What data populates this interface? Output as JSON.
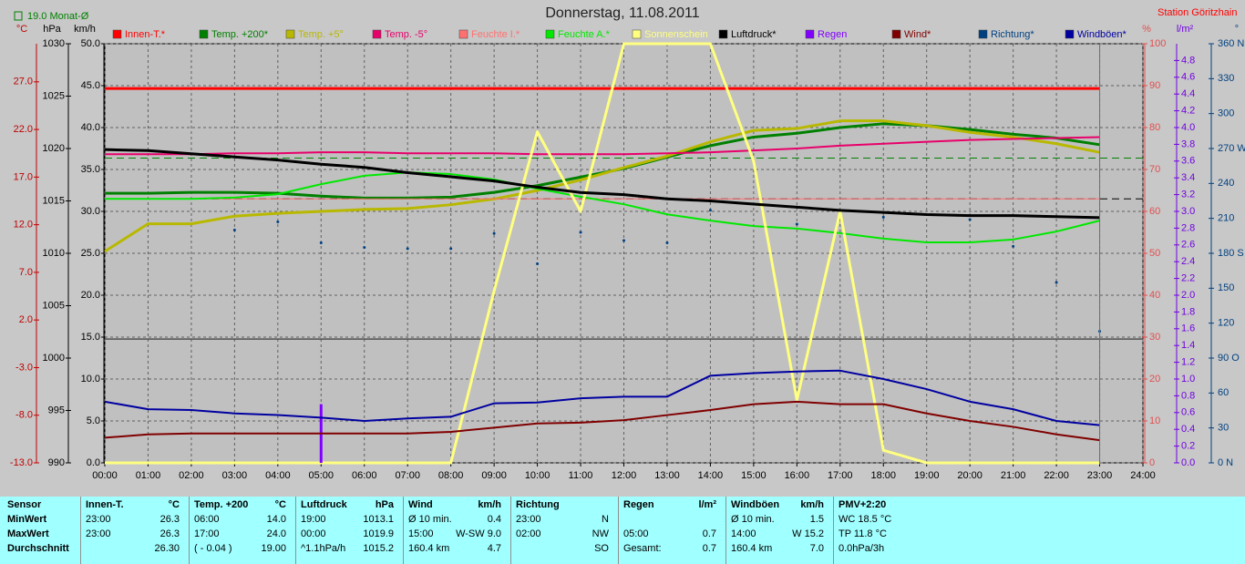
{
  "chart_data": {
    "type": "line",
    "title": "Donnerstag, 11.08.2011",
    "station": "Station Göritzhain",
    "monthly_avg": {
      "value": 19.0,
      "label": "19.0 Monat-Ø",
      "axis": 0,
      "color": "#008000"
    },
    "pressure_ref": {
      "value": 1015.2,
      "axis": 1,
      "color": "#000000"
    },
    "xlim": [
      0,
      24
    ],
    "xticks": [
      {
        "value": 0,
        "label": "00:00"
      },
      {
        "value": 1,
        "label": "01:00"
      },
      {
        "value": 2,
        "label": "02:00"
      },
      {
        "value": 3,
        "label": "03:00"
      },
      {
        "value": 4,
        "label": "04:00"
      },
      {
        "value": 5,
        "label": "05:00"
      },
      {
        "value": 6,
        "label": "06:00"
      },
      {
        "value": 7,
        "label": "07:00"
      },
      {
        "value": 8,
        "label": "08:00"
      },
      {
        "value": 9,
        "label": "09:00"
      },
      {
        "value": 10,
        "label": "10:00"
      },
      {
        "value": 11,
        "label": "11:00"
      },
      {
        "value": 12,
        "label": "12:00"
      },
      {
        "value": 13,
        "label": "13:00"
      },
      {
        "value": 14,
        "label": "14:00"
      },
      {
        "value": 15,
        "label": "15:00"
      },
      {
        "value": 16,
        "label": "16:00"
      },
      {
        "value": 17,
        "label": "17:00"
      },
      {
        "value": 18,
        "label": "18:00"
      },
      {
        "value": 19,
        "label": "19:00"
      },
      {
        "value": 20,
        "label": "20:00"
      },
      {
        "value": 21,
        "label": "21:00"
      },
      {
        "value": 22,
        "label": "22:00"
      },
      {
        "value": 23,
        "label": "23:00"
      },
      {
        "value": 24,
        "label": "24:00"
      }
    ],
    "grid": true,
    "grid_axis": 2,
    "axes": [
      {
        "unit": "°C",
        "color": "#c00000",
        "lim": [
          -13,
          31
        ],
        "ticks": [
          {
            "value": -13,
            "label": "-13.0"
          },
          {
            "value": -8,
            "label": "-8.0"
          },
          {
            "value": -3,
            "label": "-3.0"
          },
          {
            "value": 2,
            "label": "2.0"
          },
          {
            "value": 7,
            "label": "7.0"
          },
          {
            "value": 12,
            "label": "12.0"
          },
          {
            "value": 17,
            "label": "17.0"
          },
          {
            "value": 22,
            "label": "22.0"
          },
          {
            "value": 27,
            "label": "27.0"
          }
        ]
      },
      {
        "unit": "hPa",
        "color": "#000000",
        "lim": [
          990,
          1030
        ],
        "ticks": [
          990,
          995,
          1000,
          1005,
          1010,
          1015,
          1020,
          1025,
          1030
        ]
      },
      {
        "unit": "km/h",
        "color": "#000000",
        "lim": [
          0,
          50
        ],
        "ticks": [
          {
            "value": 0,
            "label": "0.0"
          },
          {
            "value": 5,
            "label": "5.0"
          },
          {
            "value": 10,
            "label": "10.0"
          },
          {
            "value": 15,
            "label": "15.0"
          },
          {
            "value": 20,
            "label": "20.0"
          },
          {
            "value": 25,
            "label": "25.0"
          },
          {
            "value": 30,
            "label": "30.0"
          },
          {
            "value": 35,
            "label": "35.0"
          },
          {
            "value": 40,
            "label": "40.0"
          },
          {
            "value": 45,
            "label": "45.0"
          },
          {
            "value": 50,
            "label": "50.0"
          }
        ]
      },
      {
        "unit": "%",
        "color": "#e05050",
        "lim": [
          0,
          100
        ],
        "ticks": [
          0,
          10,
          20,
          30,
          40,
          50,
          60,
          70,
          80,
          90,
          100
        ]
      },
      {
        "unit": "l/m²",
        "color": "#7000e0",
        "lim": [
          0,
          5
        ],
        "ticks": [
          {
            "value": 0,
            "label": "0.0"
          },
          {
            "value": 0.2,
            "label": "0.2"
          },
          {
            "value": 0.4,
            "label": "0.4"
          },
          {
            "value": 0.6,
            "label": "0.6"
          },
          {
            "value": 0.8,
            "label": "0.8"
          },
          {
            "value": 1.0,
            "label": "1.0"
          },
          {
            "value": 1.2,
            "label": "1.2"
          },
          {
            "value": 1.4,
            "label": "1.4"
          },
          {
            "value": 1.6,
            "label": "1.6"
          },
          {
            "value": 1.8,
            "label": "1.8"
          },
          {
            "value": 2.0,
            "label": "2.0"
          },
          {
            "value": 2.2,
            "label": "2.2"
          },
          {
            "value": 2.4,
            "label": "2.4"
          },
          {
            "value": 2.6,
            "label": "2.6"
          },
          {
            "value": 2.8,
            "label": "2.8"
          },
          {
            "value": 3.0,
            "label": "3.0"
          },
          {
            "value": 3.2,
            "label": "3.2"
          },
          {
            "value": 3.4,
            "label": "3.4"
          },
          {
            "value": 3.6,
            "label": "3.6"
          },
          {
            "value": 3.8,
            "label": "3.8"
          },
          {
            "value": 4.0,
            "label": "4.0"
          },
          {
            "value": 4.2,
            "label": "4.2"
          },
          {
            "value": 4.4,
            "label": "4.4"
          },
          {
            "value": 4.6,
            "label": "4.6"
          },
          {
            "value": 4.8,
            "label": "4.8"
          }
        ]
      },
      {
        "unit": "°",
        "color": "#004080",
        "lim": [
          0,
          360
        ],
        "ticks": [
          {
            "value": 0,
            "label": "0 N"
          },
          30,
          60,
          {
            "value": 90,
            "label": "90 O"
          },
          120,
          150,
          {
            "value": 180,
            "label": "180 S"
          },
          210,
          240,
          {
            "value": 270,
            "label": "270 W"
          },
          300,
          330,
          {
            "value": 360,
            "label": "360 N"
          }
        ]
      }
    ],
    "series": [
      {
        "name": "Innen-T.*",
        "color": "#ff0000",
        "axis": 0,
        "style": "line",
        "line_width": 3,
        "x": [
          0,
          23
        ],
        "values": [
          26.3,
          26.3
        ]
      },
      {
        "name": "Temp. +200*",
        "color": "#008000",
        "axis": 0,
        "style": "line",
        "line_width": 3,
        "x": [
          0,
          1,
          2,
          3,
          4,
          5,
          6,
          7,
          8,
          9,
          10,
          11,
          12,
          13,
          14,
          15,
          16,
          17,
          18,
          19,
          20,
          21,
          22,
          23
        ],
        "values": [
          15.3,
          15.3,
          15.4,
          15.4,
          15.3,
          15.0,
          14.8,
          14.8,
          14.9,
          15.4,
          16.1,
          17.0,
          17.9,
          19.1,
          20.3,
          21.2,
          21.6,
          22.2,
          22.6,
          22.4,
          22.0,
          21.5,
          21.1,
          20.4
        ]
      },
      {
        "name": "Temp. +5°",
        "color": "#b8b800",
        "axis": 0,
        "style": "line",
        "line_width": 3,
        "x": [
          0,
          1,
          2,
          3,
          4,
          5,
          6,
          7,
          8,
          9,
          10,
          11,
          12,
          13,
          14,
          15,
          16,
          17,
          18,
          19,
          20,
          21,
          22,
          23
        ],
        "values": [
          9.2,
          12.1,
          12.1,
          12.9,
          13.2,
          13.4,
          13.6,
          13.7,
          14.1,
          14.7,
          15.6,
          16.7,
          18.0,
          19.2,
          20.7,
          21.9,
          22.1,
          22.9,
          22.9,
          22.4,
          21.7,
          21.2,
          20.5,
          19.6
        ]
      },
      {
        "name": "Temp. -5°",
        "color": "#e8006a",
        "axis": 0,
        "style": "line",
        "line_width": 2,
        "x": [
          0,
          1,
          2,
          3,
          4,
          5,
          6,
          7,
          8,
          9,
          10,
          11,
          12,
          13,
          14,
          15,
          16,
          17,
          18,
          19,
          20,
          21,
          22,
          23
        ],
        "values": [
          19.4,
          19.4,
          19.4,
          19.5,
          19.5,
          19.6,
          19.6,
          19.5,
          19.5,
          19.5,
          19.4,
          19.4,
          19.4,
          19.5,
          19.6,
          19.8,
          20.0,
          20.3,
          20.5,
          20.7,
          20.9,
          21.0,
          21.1,
          21.2
        ]
      },
      {
        "name": "Feuchte I.*",
        "color": "#ff7070",
        "axis": 3,
        "style": "line",
        "line_width": 1,
        "x": [
          0,
          23
        ],
        "values": [
          63,
          63
        ]
      },
      {
        "name": "Feuchte A.*",
        "color": "#00e800",
        "axis": 3,
        "style": "line",
        "line_width": 2,
        "x": [
          0,
          1,
          2,
          3,
          4,
          5,
          6,
          7,
          8,
          9,
          10,
          11,
          12,
          13,
          14,
          15,
          16,
          17,
          18,
          19,
          20,
          21,
          22,
          23
        ],
        "values": [
          63,
          63,
          63,
          63.3,
          64.1,
          66.5,
          68.5,
          69.3,
          68.9,
          67.6,
          65.4,
          63.5,
          61.7,
          59.3,
          57.8,
          56.5,
          55.9,
          54.8,
          53.5,
          52.6,
          52.6,
          53.3,
          55.2,
          57.8
        ]
      },
      {
        "name": "Sonnenschein",
        "color": "#ffff80",
        "axis": 3,
        "style": "line",
        "line_width": 3,
        "x": [
          0,
          1,
          2,
          3,
          4,
          5,
          6,
          7,
          8,
          9,
          10,
          11,
          12,
          13,
          14,
          15,
          16,
          17,
          18,
          19,
          20,
          21,
          22,
          23
        ],
        "values": [
          0,
          0,
          0,
          0,
          0,
          0,
          0,
          0,
          0,
          41,
          79,
          60,
          100,
          100,
          100,
          72,
          15,
          60,
          3,
          0,
          0,
          0,
          0,
          0
        ]
      },
      {
        "name": "Luftdruck*",
        "color": "#000000",
        "axis": 1,
        "style": "line",
        "line_width": 3,
        "x": [
          0,
          1,
          2,
          3,
          4,
          5,
          6,
          7,
          8,
          9,
          10,
          11,
          12,
          13,
          14,
          15,
          16,
          17,
          18,
          19,
          20,
          21,
          22,
          23
        ],
        "values": [
          1019.9,
          1019.8,
          1019.5,
          1019.2,
          1018.9,
          1018.5,
          1018.2,
          1017.7,
          1017.3,
          1016.9,
          1016.3,
          1015.8,
          1015.6,
          1015.2,
          1015.0,
          1014.7,
          1014.4,
          1014.1,
          1013.9,
          1013.7,
          1013.6,
          1013.6,
          1013.5,
          1013.4
        ]
      },
      {
        "name": "Regen",
        "color": "#8000ff",
        "axis": 4,
        "style": "bar",
        "x": [
          5
        ],
        "values": [
          0.7
        ]
      },
      {
        "name": "Wind*",
        "color": "#800000",
        "axis": 2,
        "style": "line",
        "line_width": 2,
        "x": [
          0,
          1,
          2,
          3,
          4,
          5,
          6,
          7,
          8,
          9,
          10,
          11,
          12,
          13,
          14,
          15,
          16,
          17,
          18,
          19,
          20,
          21,
          22,
          23
        ],
        "values": [
          3.0,
          3.4,
          3.5,
          3.5,
          3.5,
          3.5,
          3.5,
          3.5,
          3.7,
          4.2,
          4.7,
          4.8,
          5.1,
          5.7,
          6.3,
          7.0,
          7.3,
          7.0,
          7.0,
          5.9,
          5.0,
          4.3,
          3.4,
          2.7
        ]
      },
      {
        "name": "Richtung*",
        "color": "#004080",
        "axis": 5,
        "style": "dots",
        "x": [
          3,
          4,
          5,
          6,
          7,
          8,
          9,
          10,
          11,
          12,
          13,
          14,
          16,
          18,
          20,
          21,
          22,
          23
        ],
        "values": [
          200,
          207,
          189,
          185,
          184,
          184,
          197,
          171,
          198,
          191,
          189,
          217,
          205,
          211,
          209,
          186,
          155,
          113
        ]
      },
      {
        "name": "Windböen*",
        "color": "#0000a0",
        "axis": 2,
        "style": "line",
        "line_width": 2,
        "x": [
          0,
          1,
          2,
          3,
          4,
          5,
          6,
          7,
          8,
          9,
          10,
          11,
          12,
          13,
          14,
          15,
          16,
          17,
          18,
          19,
          20,
          21,
          22,
          23
        ],
        "values": [
          7.3,
          6.4,
          6.3,
          5.9,
          5.7,
          5.4,
          5.0,
          5.3,
          5.5,
          7.1,
          7.2,
          7.7,
          7.9,
          7.9,
          10.4,
          10.7,
          10.9,
          11.0,
          10.0,
          8.8,
          7.3,
          6.4,
          5.0,
          4.5
        ]
      }
    ]
  },
  "table": {
    "row_labels": [
      "Sensor",
      "MinWert",
      "MaxWert",
      "Durchschnitt"
    ],
    "columns": [
      {
        "header": "Innen-T.",
        "unit": "°C",
        "rows": [
          [
            "23:00",
            "26.3"
          ],
          [
            "23:00",
            "26.3"
          ],
          [
            null,
            "26.30"
          ]
        ]
      },
      {
        "header": "Temp. +200",
        "unit": "°C",
        "rows": [
          [
            "06:00",
            "14.0"
          ],
          [
            "17:00",
            "24.0"
          ],
          [
            "( - 0.04 )",
            "19.00"
          ]
        ]
      },
      {
        "header": "Luftdruck",
        "unit": "hPa",
        "rows": [
          [
            "19:00",
            "1013.1"
          ],
          [
            "00:00",
            "1019.9"
          ],
          [
            "^1.1hPa/h",
            "1015.2"
          ]
        ]
      },
      {
        "header": "Wind",
        "unit": "km/h",
        "rows": [
          [
            "Ø 10 min.",
            "0.4"
          ],
          [
            "15:00",
            "W-SW 9.0"
          ],
          [
            "160.4 km",
            "4.7"
          ]
        ]
      },
      {
        "header": "Richtung",
        "rows": [
          [
            "23:00",
            "N"
          ],
          [
            "02:00",
            "NW"
          ],
          [
            null,
            "SO"
          ]
        ]
      },
      {
        "header": "Regen",
        "unit": "l/m²",
        "rows": [
          [
            null,
            null
          ],
          [
            "05:00",
            "0.7"
          ],
          [
            "Gesamt:",
            "0.7"
          ]
        ]
      },
      {
        "header": "Windböen",
        "unit": "km/h",
        "rows": [
          [
            "Ø 10 min.",
            "1.5"
          ],
          [
            "14:00",
            "W 15.2"
          ],
          [
            "160.4 km",
            "7.0"
          ]
        ]
      },
      {
        "header": "PMV+2:20",
        "rows": [
          [
            "WC 18.5 °C"
          ],
          [
            "TP 11.8 °C"
          ],
          [
            "0.0hPa/3h"
          ]
        ]
      }
    ]
  }
}
